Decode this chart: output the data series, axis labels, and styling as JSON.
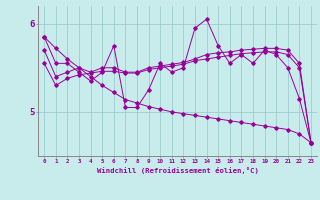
{
  "xlabel": "Windchill (Refroidissement éolien,°C)",
  "background_color": "#c8ecec",
  "grid_color": "#9ecece",
  "line_color": "#990099",
  "hours": [
    0,
    1,
    2,
    3,
    4,
    5,
    6,
    7,
    8,
    9,
    10,
    11,
    12,
    13,
    14,
    15,
    16,
    17,
    18,
    19,
    20,
    21,
    22,
    23
  ],
  "line_volatile": [
    5.85,
    5.55,
    5.55,
    5.45,
    5.35,
    5.45,
    5.75,
    5.05,
    5.05,
    5.25,
    5.55,
    5.45,
    5.5,
    5.95,
    6.05,
    5.75,
    5.55,
    5.65,
    5.55,
    5.7,
    5.65,
    5.5,
    5.15,
    4.65
  ],
  "line_smooth1": [
    5.7,
    5.4,
    5.45,
    5.5,
    5.45,
    5.5,
    5.5,
    5.45,
    5.45,
    5.5,
    5.52,
    5.54,
    5.56,
    5.6,
    5.65,
    5.67,
    5.68,
    5.7,
    5.71,
    5.72,
    5.72,
    5.7,
    5.55,
    4.65
  ],
  "line_smooth2": [
    5.55,
    5.3,
    5.38,
    5.42,
    5.44,
    5.46,
    5.46,
    5.44,
    5.44,
    5.48,
    5.5,
    5.52,
    5.54,
    5.58,
    5.6,
    5.62,
    5.64,
    5.66,
    5.67,
    5.68,
    5.68,
    5.65,
    5.5,
    4.65
  ],
  "line_diagonal": [
    5.85,
    5.72,
    5.6,
    5.5,
    5.4,
    5.3,
    5.22,
    5.14,
    5.1,
    5.06,
    5.03,
    5.0,
    4.98,
    4.96,
    4.94,
    4.92,
    4.9,
    4.88,
    4.86,
    4.84,
    4.82,
    4.8,
    4.75,
    4.65
  ],
  "ylim": [
    4.5,
    6.2
  ],
  "ytick_positions": [
    5.0,
    6.0
  ],
  "ytick_labels": [
    "5",
    "6"
  ],
  "xlim": [
    -0.5,
    23.5
  ],
  "xticks": [
    0,
    1,
    2,
    3,
    4,
    5,
    6,
    7,
    8,
    9,
    10,
    11,
    12,
    13,
    14,
    15,
    16,
    17,
    18,
    19,
    20,
    21,
    22,
    23
  ]
}
